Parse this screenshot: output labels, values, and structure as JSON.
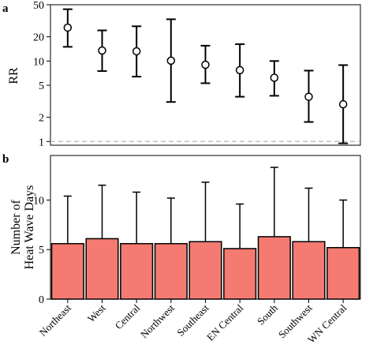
{
  "chart_data": [
    {
      "panel_label": "a",
      "type": "scatter",
      "subtype": "point-with-error-bars",
      "ylabel": "RR",
      "xlabel": "",
      "yscale": "log",
      "ylim": [
        0.9,
        50
      ],
      "yticks": [
        1,
        2,
        5,
        10,
        20,
        50
      ],
      "reference_line": {
        "y": 1,
        "style": "dashed",
        "color": "#bbbbbb"
      },
      "categories": [
        "Northeast",
        "West",
        "Central",
        "Northwest",
        "Southeast",
        "EN Central",
        "South",
        "Southwest",
        "WN Central"
      ],
      "values": [
        26,
        13.5,
        13.2,
        10.1,
        9.0,
        7.7,
        6.2,
        3.6,
        2.9
      ],
      "lower": [
        15,
        7.5,
        6.4,
        3.1,
        5.3,
        3.6,
        3.7,
        1.75,
        0.95
      ],
      "upper": [
        44,
        24,
        27,
        33,
        15.5,
        16.2,
        10,
        7.6,
        8.9
      ],
      "marker": "open-circle"
    },
    {
      "panel_label": "b",
      "type": "bar",
      "ylabel": "Number of Heat Wave Days",
      "xlabel": "",
      "ylim": [
        0,
        14.5
      ],
      "yticks": [
        0,
        5,
        10
      ],
      "categories": [
        "Northeast",
        "West",
        "Central",
        "Northwest",
        "Southeast",
        "EN Central",
        "South",
        "Southwest",
        "WN Central"
      ],
      "values": [
        5.6,
        6.1,
        5.6,
        5.6,
        5.8,
        5.1,
        6.3,
        5.8,
        5.2
      ],
      "upper": [
        10.4,
        11.5,
        10.8,
        10.2,
        11.8,
        9.6,
        13.3,
        11.2,
        10.0
      ],
      "bar_color": "#f47a72",
      "bar_edge": "#000000"
    }
  ]
}
